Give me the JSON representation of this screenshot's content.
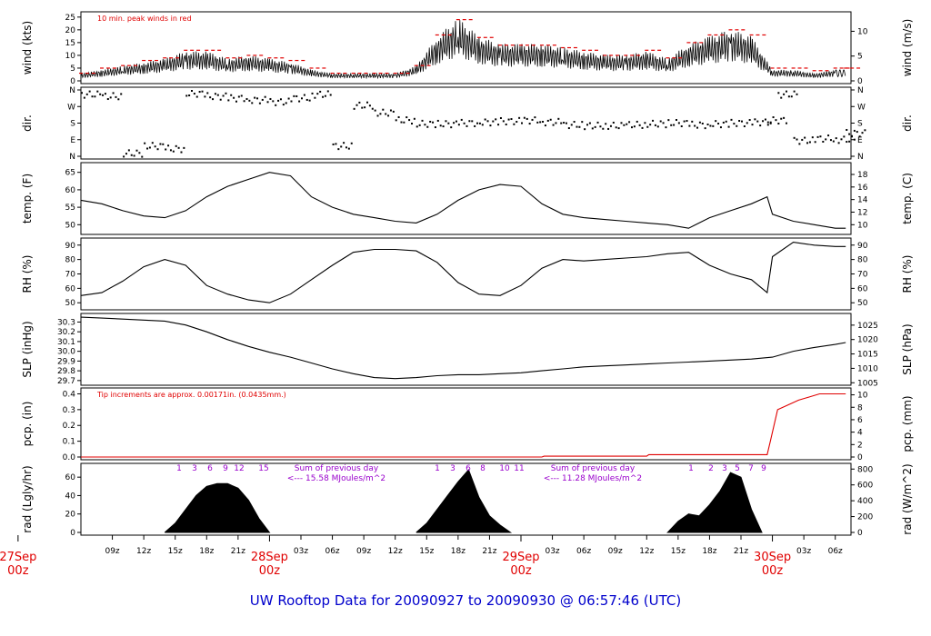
{
  "title": "UW Rooftop Data for 20090927  to  20090930 @ 06:57:46  (UTC)",
  "time_ticks": [
    {
      "h": 9,
      "label": "09z"
    },
    {
      "h": 12,
      "label": "12z"
    },
    {
      "h": 15,
      "label": "15z"
    },
    {
      "h": 18,
      "label": "18z"
    },
    {
      "h": 21,
      "label": "21z"
    },
    {
      "h": 27,
      "label": "03z"
    },
    {
      "h": 30,
      "label": "06z"
    },
    {
      "h": 33,
      "label": "09z"
    },
    {
      "h": 36,
      "label": "12z"
    },
    {
      "h": 39,
      "label": "15z"
    },
    {
      "h": 42,
      "label": "18z"
    },
    {
      "h": 45,
      "label": "21z"
    },
    {
      "h": 51,
      "label": "03z"
    },
    {
      "h": 54,
      "label": "06z"
    },
    {
      "h": 57,
      "label": "09z"
    },
    {
      "h": 60,
      "label": "12z"
    },
    {
      "h": 63,
      "label": "15z"
    },
    {
      "h": 66,
      "label": "18z"
    },
    {
      "h": 69,
      "label": "21z"
    },
    {
      "h": 75,
      "label": "03z"
    },
    {
      "h": 78,
      "label": "06z"
    }
  ],
  "date_labels": [
    {
      "h": 0,
      "date": "27Sep",
      "z": "00z"
    },
    {
      "h": 24,
      "date": "28Sep",
      "z": "00z"
    },
    {
      "h": 48,
      "date": "29Sep",
      "z": "00z"
    },
    {
      "h": 72,
      "date": "30Sep",
      "z": "00z"
    }
  ],
  "panels": [
    {
      "id": "wind",
      "left_label": "wind (kts)",
      "right_label": "wind (m/s)",
      "left_ticks": [
        "0",
        "5",
        "10",
        "15",
        "20",
        "25"
      ],
      "right_ticks": [
        "0",
        "5",
        "10"
      ],
      "annotation": "10 min. peak winds in red"
    },
    {
      "id": "dir",
      "left_label": "dir.",
      "right_label": "dir.",
      "left_ticks": [
        "N",
        "E",
        "S",
        "W",
        "N"
      ],
      "right_ticks": [
        "N",
        "E",
        "S",
        "W",
        "N"
      ]
    },
    {
      "id": "temp",
      "left_label": "temp. (F)",
      "right_label": "temp. (C)",
      "left_ticks": [
        "50",
        "55",
        "60",
        "65"
      ],
      "right_ticks": [
        "10",
        "12",
        "14",
        "16",
        "18"
      ]
    },
    {
      "id": "rh",
      "left_label": "RH (%)",
      "right_label": "RH (%)",
      "left_ticks": [
        "50",
        "60",
        "70",
        "80",
        "90"
      ],
      "right_ticks": [
        "50",
        "60",
        "70",
        "80",
        "90"
      ]
    },
    {
      "id": "slp",
      "left_label": "SLP (inHg)",
      "right_label": "SLP (hPa)",
      "left_ticks": [
        "29.7",
        "29.8",
        "29.9",
        "30.0",
        "30.1",
        "30.2",
        "30.3"
      ],
      "right_ticks": [
        "1005",
        "1010",
        "1015",
        "1020",
        "1025"
      ]
    },
    {
      "id": "pcp",
      "left_label": "pcp. (in)",
      "right_label": "pcp. (mm)",
      "left_ticks": [
        "0.0",
        "0.1",
        "0.2",
        "0.3",
        "0.4"
      ],
      "right_ticks": [
        "0",
        "2",
        "4",
        "6",
        "8",
        "10"
      ],
      "annotation": "Tip increments are approx. 0.00171in. (0.0435mm.)"
    },
    {
      "id": "rad",
      "left_label": "rad (Lgly/hr)",
      "right_label": "rad (W/m^2)",
      "left_ticks": [
        "0",
        "20",
        "40",
        "60"
      ],
      "right_ticks": [
        "0",
        "200",
        "400",
        "600",
        "800"
      ]
    }
  ],
  "radiation_notes": [
    {
      "hours": [
        "1",
        "3",
        "6",
        "9",
        "12",
        "15"
      ],
      "sum_title": "Sum of previous day",
      "sum_value": "<--- 15.58 MJoules/m^2"
    },
    {
      "hours": [
        "1",
        "3",
        "6",
        "8",
        "10",
        "11"
      ],
      "sum_title": "Sum of previous day",
      "sum_value": "<--- 11.28 MJoules/m^2"
    },
    {
      "hours": [
        "1",
        "2",
        "3",
        "5",
        "7",
        "9"
      ]
    }
  ],
  "colors": {
    "data": "#000000",
    "peak": "#e00000",
    "precip": "#e00000",
    "title": "#0000cc",
    "notes": "#9900cc",
    "dates": "#e00000"
  },
  "chart_data": [
    {
      "type": "line",
      "ylabel": "wind (kts)",
      "y2label": "wind (m/s)",
      "ylim": [
        0,
        26
      ],
      "x_hours": [
        6,
        8,
        10,
        12,
        14,
        16,
        18,
        20,
        22,
        24,
        26,
        28,
        30,
        32,
        34,
        36,
        38,
        40,
        42,
        44,
        46,
        48,
        50,
        52,
        54,
        56,
        58,
        60,
        62,
        64,
        66,
        68,
        70,
        72,
        74,
        76,
        78,
        79
      ],
      "series": [
        {
          "name": "wind",
          "values": [
            2,
            3,
            4,
            5,
            6,
            8,
            8,
            6,
            7,
            6,
            5,
            3,
            2,
            2,
            2,
            2,
            4,
            12,
            17,
            12,
            10,
            10,
            10,
            9,
            8,
            7,
            7,
            8,
            6,
            10,
            12,
            14,
            12,
            3,
            3,
            2,
            3,
            3
          ]
        },
        {
          "name": "10 min. peak winds",
          "values": [
            3,
            5,
            6,
            8,
            9,
            12,
            12,
            9,
            10,
            9,
            8,
            5,
            3,
            3,
            3,
            3,
            6,
            18,
            24,
            17,
            14,
            14,
            14,
            13,
            12,
            10,
            10,
            12,
            9,
            15,
            18,
            20,
            18,
            5,
            5,
            4,
            5,
            5
          ]
        }
      ]
    },
    {
      "type": "scatter",
      "ylabel": "dir.",
      "y2label": "dir.",
      "ylim": [
        0,
        360
      ],
      "x_hours": [
        6,
        8,
        10,
        12,
        14,
        16,
        18,
        20,
        22,
        24,
        26,
        28,
        30,
        32,
        34,
        36,
        38,
        40,
        42,
        44,
        46,
        48,
        50,
        52,
        54,
        56,
        58,
        60,
        62,
        64,
        66,
        68,
        70,
        71.5,
        72.5,
        74,
        76,
        78,
        79
      ],
      "values": [
        340,
        330,
        20,
        60,
        45,
        345,
        330,
        320,
        310,
        300,
        320,
        340,
        60,
        280,
        240,
        200,
        180,
        180,
        185,
        190,
        195,
        200,
        190,
        175,
        170,
        170,
        175,
        180,
        185,
        175,
        180,
        185,
        190,
        200,
        340,
        90,
        100,
        95,
        130
      ]
    },
    {
      "type": "line",
      "ylabel": "temp. (F)",
      "y2label": "temp. (C)",
      "ylim": [
        48,
        67
      ],
      "x_hours": [
        6,
        8,
        10,
        12,
        14,
        16,
        18,
        20,
        22,
        24,
        26,
        28,
        30,
        32,
        34,
        36,
        38,
        40,
        42,
        44,
        46,
        48,
        50,
        52,
        54,
        56,
        58,
        60,
        62,
        64,
        66,
        68,
        70,
        71.5,
        72,
        74,
        76,
        78,
        79
      ],
      "values": [
        57,
        56,
        54,
        52.5,
        52,
        54,
        58,
        61,
        63,
        65,
        64,
        58,
        55,
        53,
        52,
        51,
        50.5,
        53,
        57,
        60,
        61.5,
        61,
        56,
        53,
        52,
        51.5,
        51,
        50.5,
        50,
        49,
        52,
        54,
        56,
        58,
        53,
        51,
        50,
        49,
        49
      ]
    },
    {
      "type": "line",
      "ylabel": "RH (%)",
      "y2label": "RH (%)",
      "ylim": [
        47,
        93
      ],
      "x_hours": [
        6,
        8,
        10,
        12,
        14,
        16,
        18,
        20,
        22,
        24,
        26,
        28,
        30,
        32,
        34,
        36,
        38,
        40,
        42,
        44,
        46,
        48,
        50,
        52,
        54,
        56,
        58,
        60,
        62,
        64,
        66,
        68,
        70,
        71.5,
        72,
        74,
        76,
        78,
        79
      ],
      "values": [
        55,
        57,
        65,
        75,
        80,
        76,
        62,
        56,
        52,
        50,
        56,
        66,
        76,
        85,
        87,
        87,
        86,
        78,
        64,
        56,
        55,
        62,
        74,
        80,
        79,
        80,
        81,
        82,
        84,
        85,
        76,
        70,
        66,
        57,
        82,
        92,
        90,
        89,
        89
      ]
    },
    {
      "type": "line",
      "ylabel": "SLP (inHg)",
      "y2label": "SLP (hPa)",
      "ylim": [
        29.68,
        30.36
      ],
      "x_hours": [
        6,
        8,
        10,
        12,
        14,
        16,
        18,
        20,
        22,
        24,
        26,
        28,
        30,
        32,
        34,
        36,
        38,
        40,
        42,
        44,
        46,
        48,
        50,
        52,
        54,
        56,
        58,
        60,
        62,
        64,
        66,
        68,
        70,
        72,
        74,
        76,
        78,
        79
      ],
      "values": [
        30.35,
        30.34,
        30.33,
        30.32,
        30.31,
        30.27,
        30.2,
        30.12,
        30.05,
        29.99,
        29.94,
        29.88,
        29.82,
        29.77,
        29.73,
        29.72,
        29.73,
        29.75,
        29.76,
        29.76,
        29.77,
        29.78,
        29.8,
        29.82,
        29.84,
        29.85,
        29.86,
        29.87,
        29.88,
        29.89,
        29.9,
        29.91,
        29.92,
        29.94,
        30.0,
        30.04,
        30.07,
        30.09
      ]
    },
    {
      "type": "line",
      "ylabel": "pcp. (in)",
      "y2label": "pcp. (mm)",
      "ylim": [
        0,
        0.42
      ],
      "x_hours": [
        6,
        50,
        50.2,
        60,
        60.2,
        71.5,
        71.8,
        72.5,
        73.5,
        74.5,
        75.5,
        76.5,
        79
      ],
      "values": [
        0.0,
        0.0,
        0.005,
        0.005,
        0.015,
        0.015,
        0.1,
        0.3,
        0.33,
        0.36,
        0.38,
        0.4,
        0.4
      ]
    },
    {
      "type": "area",
      "ylabel": "rad (Lgly/hr)",
      "y2label": "rad (W/m^2)",
      "ylim": [
        0,
        72
      ],
      "x_hours": [
        14,
        15,
        16,
        17,
        18,
        19,
        20,
        21,
        22,
        23,
        24,
        38,
        39,
        40,
        41,
        42,
        43,
        44,
        45,
        46,
        47,
        62,
        63,
        64,
        65,
        66,
        67,
        68,
        69,
        70,
        71
      ],
      "values": [
        0,
        10,
        25,
        40,
        50,
        53,
        53,
        48,
        35,
        15,
        0,
        0,
        10,
        25,
        40,
        55,
        68,
        38,
        18,
        8,
        0,
        0,
        12,
        20,
        18,
        30,
        45,
        65,
        60,
        25,
        0
      ]
    }
  ]
}
